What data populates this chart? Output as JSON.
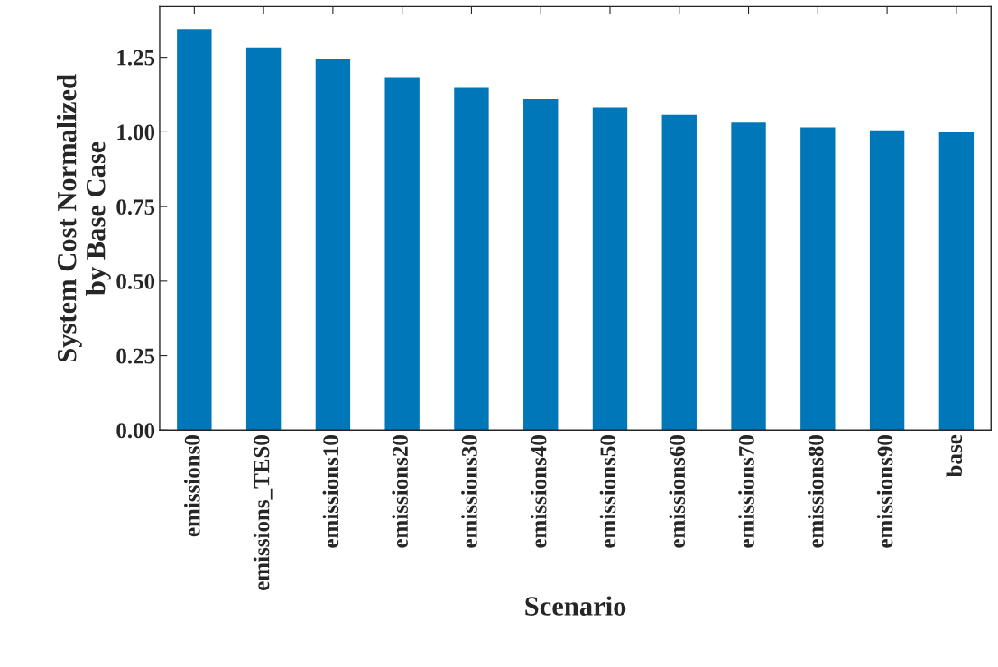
{
  "chart_data": {
    "type": "bar",
    "xlabel": "Scenario",
    "ylabel": "System Cost Normalized\nby Base Case",
    "categories": [
      "emissions0",
      "emissions_TES0",
      "emissions10",
      "emissions20",
      "emissions30",
      "emissions40",
      "emissions50",
      "emissions60",
      "emissions70",
      "emissions80",
      "emissions90",
      "base"
    ],
    "values": [
      1.345,
      1.283,
      1.243,
      1.184,
      1.148,
      1.11,
      1.081,
      1.056,
      1.034,
      1.015,
      1.005,
      1.0
    ],
    "color": "#0077b8",
    "ylim": [
      0,
      1.42
    ],
    "yticks": [
      {
        "value": 0,
        "label": "0.00"
      },
      {
        "value": 0.25,
        "label": "0.25"
      },
      {
        "value": 0.5,
        "label": "0.50"
      },
      {
        "value": 0.75,
        "label": "0.75"
      },
      {
        "value": 1.0,
        "label": "1.00"
      },
      {
        "value": 1.25,
        "label": "1.25"
      }
    ],
    "grid": false,
    "legend": false
  }
}
